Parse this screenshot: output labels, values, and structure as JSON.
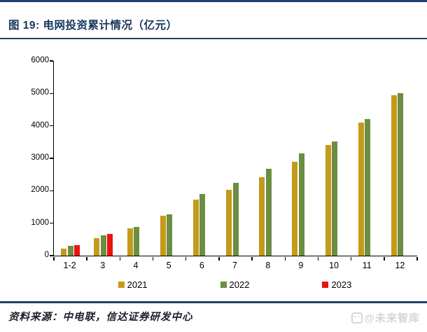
{
  "page": {
    "title": "图 19: 电网投资累计情况（亿元）",
    "footer": {
      "source_text": "资料来源：中电联，信达证券研发中心",
      "watermark_text": "@未来智库"
    }
  },
  "colors": {
    "title_navy": "#17365D",
    "rule_navy": "#23406E",
    "axis_black": "#000000",
    "series_2021_gold": "#C39A1B",
    "series_2022_green": "#6B8E40",
    "series_2023_red": "#EE1111",
    "watermark_gray": "#D5D5D5"
  },
  "chart_data": {
    "type": "bar",
    "title": "电网投资累计情况（亿元）",
    "categories": [
      "1-2",
      "3",
      "4",
      "5",
      "6",
      "7",
      "8",
      "9",
      "10",
      "11",
      "12"
    ],
    "series": [
      {
        "name": "2021",
        "color": "#C39A1B",
        "values": [
          226,
          540,
          837,
          1225,
          1734,
          2029,
          2409,
          2891,
          3408,
          4102,
          4951
        ]
      },
      {
        "name": "2022",
        "color": "#6B8E40",
        "values": [
          313,
          621,
          893,
          1263,
          1905,
          2239,
          2667,
          3154,
          3511,
          4209,
          5012
        ]
      },
      {
        "name": "2023",
        "color": "#EE1111",
        "values": [
          319,
          668,
          null,
          null,
          null,
          null,
          null,
          null,
          null,
          null,
          null
        ]
      }
    ],
    "xlabel": "",
    "ylabel": "",
    "ylim": [
      0,
      6000
    ],
    "ytick_step": 1000,
    "yticks": [
      "0",
      "1000",
      "2000",
      "3000",
      "4000",
      "5000",
      "6000"
    ],
    "grid": false,
    "legend_position": "bottom"
  }
}
